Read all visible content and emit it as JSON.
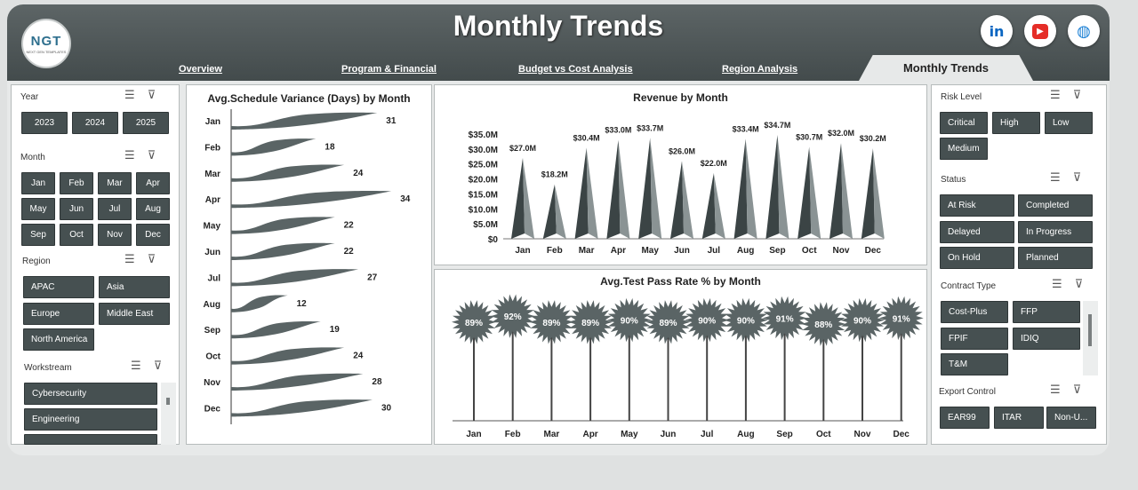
{
  "header": {
    "title": "Monthly Trends",
    "logo_text": "NGT",
    "logo_subtext": "NEXT GEN TEMPLATES",
    "nav": [
      "Overview",
      "Program & Financial",
      "Budget vs Cost  Analysis",
      "Region Analysis"
    ],
    "active_tab": "Monthly Trends",
    "social": [
      {
        "icon": "linkedin-icon",
        "glyph": "in",
        "color": "#0a66c2"
      },
      {
        "icon": "youtube-icon",
        "glyph": "▶",
        "color": "#e52d27"
      },
      {
        "icon": "globe-icon",
        "glyph": "🌐",
        "color": "#1a7fd4"
      }
    ]
  },
  "colors": {
    "header": "#4c5556",
    "button": "#465051",
    "chart_dark": "#3b4445",
    "chart_mid": "#5a6465"
  },
  "left_slicers": {
    "year": {
      "title": "Year",
      "items": [
        "2023",
        "2024",
        "2025"
      ]
    },
    "month": {
      "title": "Month",
      "items": [
        "Jan",
        "Feb",
        "Mar",
        "Apr",
        "May",
        "Jun",
        "Jul",
        "Aug",
        "Sep",
        "Oct",
        "Nov",
        "Dec"
      ]
    },
    "region": {
      "title": "Region",
      "items": [
        "APAC",
        "Asia",
        "Europe",
        "Middle East",
        "North America"
      ]
    },
    "workstream": {
      "title": "Workstream",
      "items": [
        "Cybersecurity",
        "Engineering"
      ]
    }
  },
  "right_slicers": {
    "risk": {
      "title": "Risk Level",
      "items": [
        "Critical",
        "High",
        "Low",
        "Medium"
      ]
    },
    "status": {
      "title": "Status",
      "items": [
        "At Risk",
        "Completed",
        "Delayed",
        "In Progress",
        "On Hold",
        "Planned"
      ]
    },
    "contract": {
      "title": "Contract Type",
      "items": [
        "Cost-Plus",
        "FFP",
        "FPIF",
        "IDIQ",
        "T&M"
      ]
    },
    "export": {
      "title": "Export Control",
      "items": [
        "EAR99",
        "ITAR",
        "Non-U..."
      ]
    }
  },
  "chart_data": [
    {
      "type": "bar",
      "orientation": "horizontal",
      "title": "Avg.Schedule Variance (Days) by Month",
      "categories": [
        "Jan",
        "Feb",
        "Mar",
        "Apr",
        "May",
        "Jun",
        "Jul",
        "Aug",
        "Sep",
        "Oct",
        "Nov",
        "Dec"
      ],
      "values": [
        31,
        18,
        24,
        34,
        22,
        22,
        27,
        12,
        19,
        24,
        28,
        30
      ],
      "data_labels": [
        "31",
        "18",
        "24",
        "34",
        "22",
        "22",
        "27",
        "12",
        "19",
        "24",
        "28",
        "30"
      ]
    },
    {
      "type": "bar",
      "title": "Revenue by Month",
      "categories": [
        "Jan",
        "Feb",
        "Mar",
        "Apr",
        "May",
        "Jun",
        "Jul",
        "Aug",
        "Sep",
        "Oct",
        "Nov",
        "Dec"
      ],
      "values": [
        27.0,
        18.2,
        30.4,
        33.0,
        33.7,
        26.0,
        22.0,
        33.4,
        34.7,
        30.7,
        32.0,
        30.2
      ],
      "data_labels": [
        "$27.0M",
        "$18.2M",
        "$30.4M",
        "$33.0M",
        "$33.7M",
        "$26.0M",
        "$22.0M",
        "$33.4M",
        "$34.7M",
        "$30.7M",
        "$32.0M",
        "$30.2M"
      ],
      "yticks": [
        "$0",
        "$5.0M",
        "$10.0M",
        "$15.0M",
        "$20.0M",
        "$25.0M",
        "$30.0M",
        "$35.0M"
      ],
      "ylim": [
        0,
        35
      ]
    },
    {
      "type": "bar",
      "title": "Avg.Test Pass Rate % by Month",
      "categories": [
        "Jan",
        "Feb",
        "Mar",
        "Apr",
        "May",
        "Jun",
        "Jul",
        "Aug",
        "Sep",
        "Oct",
        "Nov",
        "Dec"
      ],
      "values": [
        89,
        92,
        89,
        89,
        90,
        89,
        90,
        90,
        91,
        88,
        90,
        91
      ],
      "data_labels": [
        "89%",
        "92%",
        "89%",
        "89%",
        "90%",
        "89%",
        "90%",
        "90%",
        "91%",
        "88%",
        "90%",
        "91%"
      ]
    }
  ]
}
